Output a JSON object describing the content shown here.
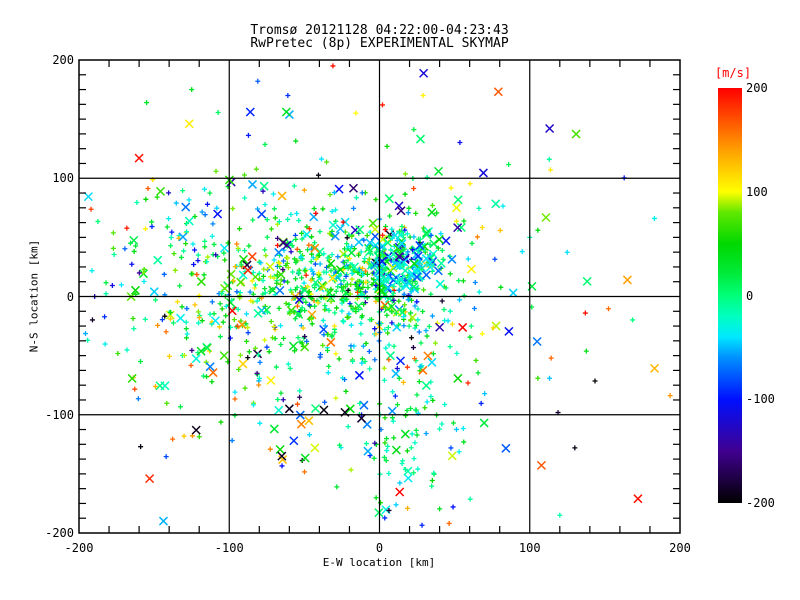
{
  "title": {
    "line1": "Tromsø 20121128 04:22:00-04:23:43",
    "line2": "RwPretec (8p) EXPERIMENTAL SKYMAP"
  },
  "chart_data": {
    "type": "scatter",
    "title": "Tromsø 20121128 04:22:00-04:23:43",
    "subtitle": "RwPretec (8p) EXPERIMENTAL SKYMAP",
    "xlabel": "E-W location [km]",
    "ylabel": "N-S location [km]",
    "xlim": [
      -200,
      200
    ],
    "ylim": [
      -200,
      200
    ],
    "xticks": [
      -200,
      -100,
      0,
      100,
      200
    ],
    "yticks": [
      200,
      100,
      0,
      -100,
      -200
    ],
    "x_minor_step_km": 20,
    "y_minor_step_km": 12.5,
    "grid": true,
    "frame_color": "#000000",
    "colorbar": {
      "label": "[m/s]",
      "label_color": "#ff0000",
      "min": -200,
      "max": 200,
      "ticks": [
        200,
        100,
        0,
        -100,
        -200
      ],
      "position": "right",
      "color_stops": [
        [
          -200,
          "#000000"
        ],
        [
          -150,
          "#400090"
        ],
        [
          -100,
          "#0010ff"
        ],
        [
          -60,
          "#0090ff"
        ],
        [
          -40,
          "#00e8ff"
        ],
        [
          -20,
          "#00ffc0"
        ],
        [
          0,
          "#00ff78"
        ],
        [
          25,
          "#00e832"
        ],
        [
          50,
          "#00d800"
        ],
        [
          80,
          "#60e800"
        ],
        [
          100,
          "#ffff00"
        ],
        [
          140,
          "#ffa000"
        ],
        [
          170,
          "#ff5000"
        ],
        [
          200,
          "#ff0000"
        ]
      ]
    },
    "marker_styles": {
      "plus": {
        "size": 5,
        "stroke_width": 1.3
      },
      "cross": {
        "size": 8,
        "stroke_width": 1.5
      }
    },
    "point_model": {
      "note": "dense echo scatter reproduced by seeded clusters; v = line-of-sight velocity in m/s mapped through colorbar",
      "seed": 20121128,
      "clusters": [
        {
          "name": "main-cloud",
          "n": 550,
          "cx": -45,
          "cy": 5,
          "sx": 62,
          "sy": 50,
          "cross_prob": 0.12,
          "v_mean": 15,
          "v_sd": 60,
          "tail_prob": 0.14
        },
        {
          "name": "center-core",
          "n": 300,
          "cx": -22,
          "cy": 10,
          "sx": 30,
          "sy": 24,
          "cross_prob": 0.07,
          "v_mean": 25,
          "v_sd": 45,
          "tail_prob": 0.07
        },
        {
          "name": "east-cross-cluster",
          "n": 165,
          "cx": 12,
          "cy": 28,
          "sx": 15,
          "sy": 17,
          "cross_prob": 0.62,
          "v_mean": -30,
          "v_sd": 42,
          "tail_prob": 0.05
        },
        {
          "name": "south-trail",
          "n": 95,
          "cx": 15,
          "cy": -120,
          "sx": 20,
          "sy": 42,
          "cross_prob": 0.1,
          "v_mean": -5,
          "v_sd": 35,
          "tail_prob": 0.06
        },
        {
          "name": "west-band",
          "n": 120,
          "cx": -115,
          "cy": -5,
          "sx": 45,
          "sy": 62,
          "cross_prob": 0.3,
          "v_mean": 10,
          "v_sd": 95,
          "tail_prob": 0.28
        },
        {
          "name": "sparse-background",
          "n": 115,
          "cx": 0,
          "cy": 0,
          "sx": 105,
          "sy": 105,
          "cross_prob": 0.38,
          "v_mean": 0,
          "v_sd": 120,
          "tail_prob": 0.45
        }
      ],
      "notable_points": [
        {
          "x": -160,
          "y": 117,
          "v": 195,
          "marker": "cross"
        },
        {
          "x": -86,
          "y": 156,
          "v": -95,
          "marker": "cross"
        },
        {
          "x": -62,
          "y": 156,
          "v": 35,
          "marker": "cross"
        },
        {
          "x": 29,
          "y": 170,
          "v": 105,
          "marker": "plus"
        },
        {
          "x": 2,
          "y": 162,
          "v": 190,
          "marker": "plus"
        },
        {
          "x": -81,
          "y": 182,
          "v": -75,
          "marker": "plus"
        },
        {
          "x": -61,
          "y": 170,
          "v": -90,
          "marker": "plus"
        },
        {
          "x": -31,
          "y": 195,
          "v": 195,
          "marker": "plus"
        },
        {
          "x": -109,
          "y": 197,
          "v": 40,
          "marker": "plus"
        },
        {
          "x": -46,
          "y": 197,
          "v": 30,
          "marker": "plus"
        },
        {
          "x": -125,
          "y": 175,
          "v": 35,
          "marker": "plus"
        },
        {
          "x": -155,
          "y": 164,
          "v": 30,
          "marker": "plus"
        },
        {
          "x": 165,
          "y": 14,
          "v": 140,
          "marker": "cross"
        },
        {
          "x": 89,
          "y": 3,
          "v": -45,
          "marker": "cross"
        },
        {
          "x": 95,
          "y": 38,
          "v": -40,
          "marker": "plus"
        },
        {
          "x": 137,
          "y": -14,
          "v": 195,
          "marker": "plus"
        },
        {
          "x": 172,
          "y": -171,
          "v": 195,
          "marker": "cross"
        },
        {
          "x": 130,
          "y": -128,
          "v": -195,
          "marker": "plus"
        },
        {
          "x": 120,
          "y": -185,
          "v": -15,
          "marker": "plus"
        },
        {
          "x": 113,
          "y": 116,
          "v": -10,
          "marker": "plus"
        },
        {
          "x": 100,
          "y": 50,
          "v": -15,
          "marker": "plus"
        },
        {
          "x": 183,
          "y": 66,
          "v": -35,
          "marker": "plus"
        },
        {
          "x": -153,
          "y": -154,
          "v": 185,
          "marker": "cross"
        },
        {
          "x": -159,
          "y": -127,
          "v": -195,
          "marker": "plus"
        },
        {
          "x": -122,
          "y": -113,
          "v": -190,
          "marker": "cross"
        },
        {
          "x": -60,
          "y": -95,
          "v": -190,
          "marker": "cross"
        },
        {
          "x": -37,
          "y": -96,
          "v": -195,
          "marker": "cross"
        },
        {
          "x": -23,
          "y": -98,
          "v": -190,
          "marker": "cross"
        },
        {
          "x": -12,
          "y": -103,
          "v": -185,
          "marker": "cross"
        },
        {
          "x": -65,
          "y": -135,
          "v": -190,
          "marker": "cross"
        },
        {
          "x": -57,
          "y": -122,
          "v": -90,
          "marker": "cross"
        },
        {
          "x": -43,
          "y": -128,
          "v": 95,
          "marker": "cross"
        },
        {
          "x": -70,
          "y": -112,
          "v": 25,
          "marker": "cross"
        },
        {
          "x": -52,
          "y": -108,
          "v": 150,
          "marker": "cross"
        }
      ]
    }
  }
}
